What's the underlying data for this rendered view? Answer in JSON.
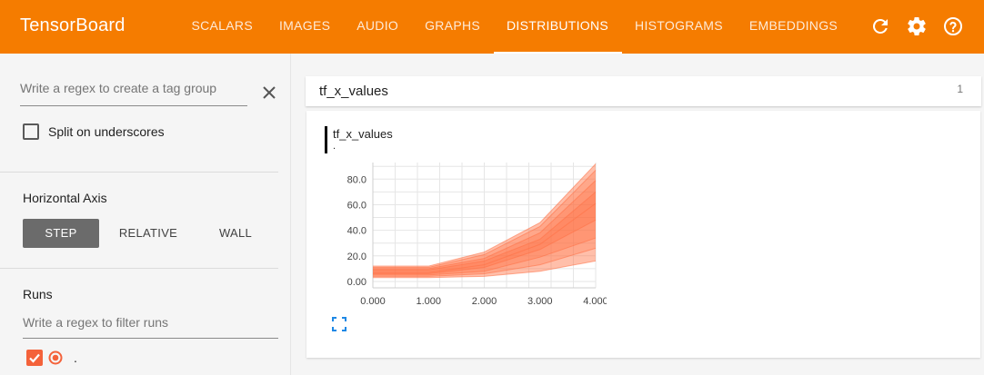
{
  "app": {
    "title": "TensorBoard"
  },
  "nav": {
    "tabs": [
      {
        "label": "SCALARS"
      },
      {
        "label": "IMAGES"
      },
      {
        "label": "AUDIO"
      },
      {
        "label": "GRAPHS"
      },
      {
        "label": "DISTRIBUTIONS",
        "active": true
      },
      {
        "label": "HISTOGRAMS"
      },
      {
        "label": "EMBEDDINGS"
      }
    ],
    "icons": [
      "refresh-icon",
      "settings-icon",
      "help-icon"
    ]
  },
  "sidebar": {
    "tag_regex_placeholder": "Write a regex to create a tag group",
    "split_label": "Split on underscores",
    "split_checked": false,
    "horizontal_axis": {
      "title": "Horizontal Axis",
      "options": [
        "STEP",
        "RELATIVE",
        "WALL"
      ],
      "selected": "STEP"
    },
    "runs": {
      "title": "Runs",
      "filter_placeholder": "Write a regex to filter runs",
      "items": [
        {
          "name": ".",
          "checked": true
        }
      ]
    }
  },
  "main": {
    "tag_group": {
      "name": "tf_x_values",
      "count": "1"
    },
    "card": {
      "title": "tf_x_values",
      "subtitle": "."
    }
  },
  "colors": {
    "accent": "#f57c00",
    "series": "#ff7043"
  },
  "chart_data": {
    "type": "area",
    "title": "tf_x_values",
    "x": [
      0,
      1,
      2,
      3,
      4
    ],
    "x_tick_labels": [
      "0.000",
      "1.000",
      "2.000",
      "3.000",
      "4.000"
    ],
    "y_tick_labels": [
      "0.00",
      "20.0",
      "40.0",
      "60.0",
      "80.0"
    ],
    "ylim": [
      -5,
      93
    ],
    "grid": true,
    "percentile_bands": {
      "p0": [
        3,
        3,
        4,
        8,
        16
      ],
      "p7": [
        4,
        4,
        6,
        13,
        26
      ],
      "p16": [
        5,
        5,
        8,
        19,
        34
      ],
      "p31": [
        6,
        6,
        11,
        25,
        48
      ],
      "p50": [
        7,
        7,
        13,
        29,
        61
      ],
      "p69": [
        9,
        9,
        16,
        33,
        70
      ],
      "p84": [
        10,
        10,
        18,
        38,
        79
      ],
      "p93": [
        11,
        11,
        21,
        43,
        87
      ],
      "p100": [
        12,
        12,
        23,
        46,
        92
      ]
    }
  }
}
